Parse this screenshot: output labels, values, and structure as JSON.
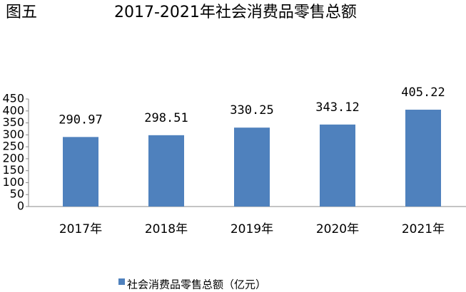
{
  "chart_data": {
    "type": "bar",
    "figure_label": "图五",
    "title": "2017-2021年社会消费品零售总额",
    "categories": [
      "2017年",
      "2018年",
      "2019年",
      "2020年",
      "2021年"
    ],
    "series": [
      {
        "name": "社会消费品零售总额（亿元）",
        "color": "#4f81bd",
        "values": [
          290.97,
          298.51,
          330.25,
          343.12,
          405.22
        ]
      }
    ],
    "ylim": [
      0,
      450
    ],
    "yticks": [
      0,
      50,
      100,
      150,
      200,
      250,
      300,
      350,
      400,
      450
    ],
    "grid": false,
    "legend": "bottom"
  }
}
